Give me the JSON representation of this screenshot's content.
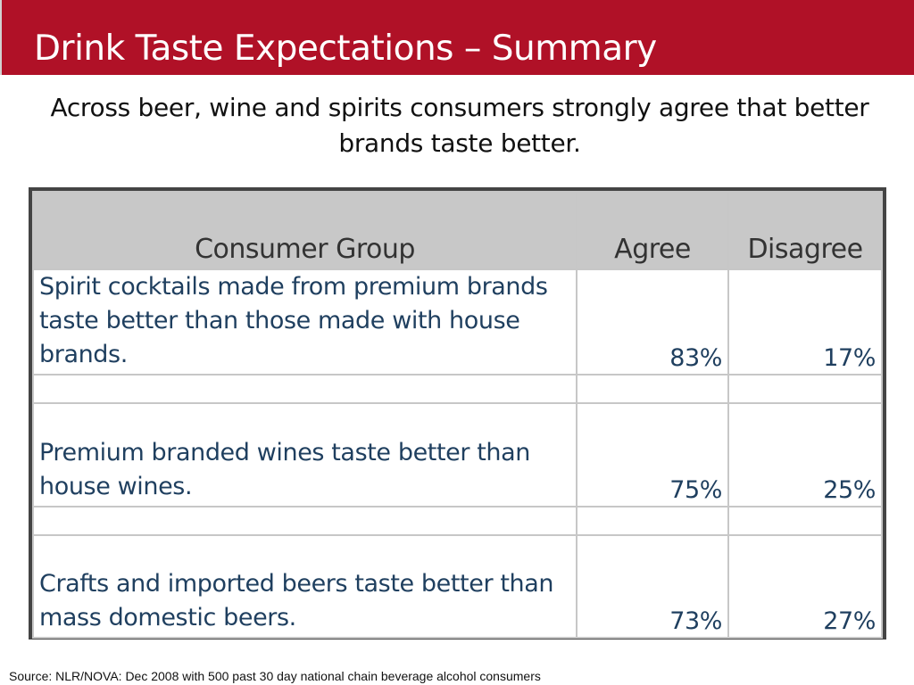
{
  "slide": {
    "title": "Drink Taste Expectations – Summary",
    "subtitle": "Across beer, wine and spirits consumers strongly agree that better brands taste better.",
    "source": "Source: NLR/NOVA:  Dec 2008 with 500 past 30 day national chain beverage alcohol consumers"
  },
  "table": {
    "headers": [
      "Consumer Group",
      "Agree",
      "Disagree"
    ],
    "rows": [
      {
        "group": "Spirit cocktails made from premium brands taste better than those made with house brands.",
        "agree": "83%",
        "disagree": "17%"
      },
      {
        "group": "Premium branded wines taste better than house wines.",
        "agree": "75%",
        "disagree": "25%"
      },
      {
        "group": "Crafts and imported beers taste better than mass domestic beers.",
        "agree": "73%",
        "disagree": "27%"
      }
    ]
  },
  "colors": {
    "title_bar": "#b01127",
    "header_fill": "#c8c8c8",
    "body_text": "#1f3f5f",
    "grid": "#c7c7c7"
  }
}
